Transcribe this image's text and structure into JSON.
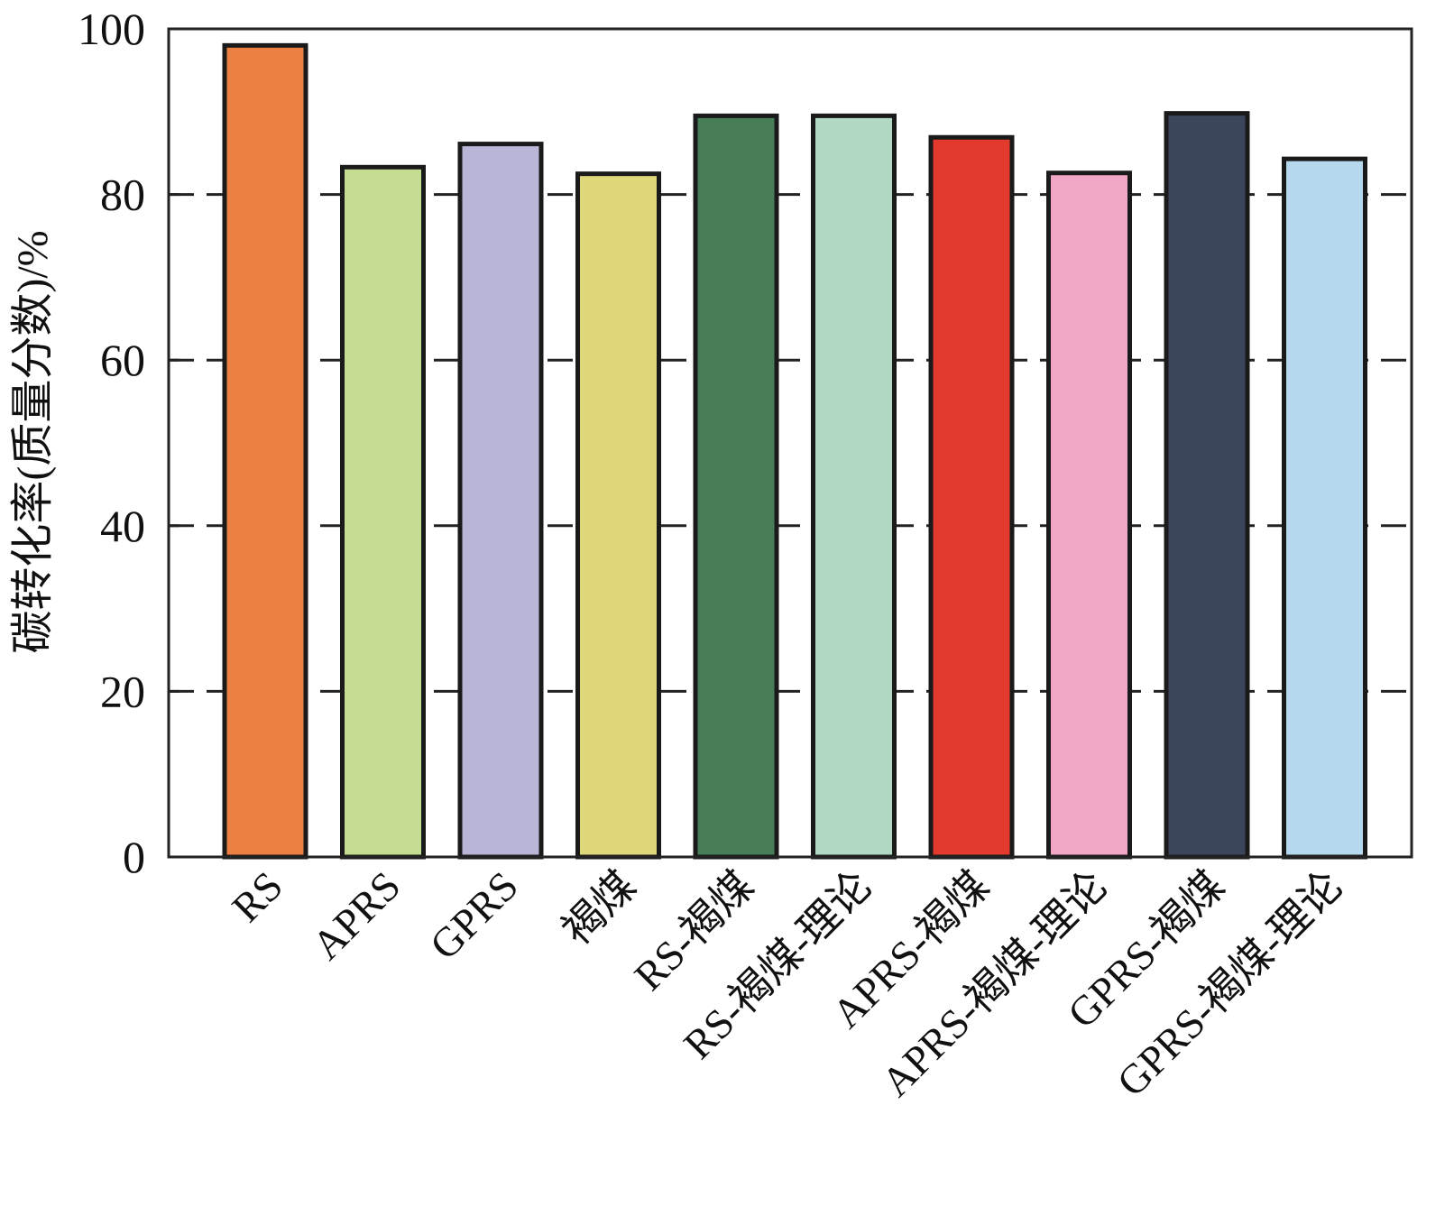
{
  "chart_data": {
    "type": "bar",
    "title": "",
    "xlabel": "",
    "ylabel": "碳转化率(质量分数)/%",
    "ylim": [
      0,
      100
    ],
    "yticks": [
      "0",
      "20",
      "40",
      "60",
      "80",
      "100"
    ],
    "grid": "dashed horizontal at y ticks",
    "categories": [
      "RS",
      "APRS",
      "GPRS",
      "褐煤",
      "RS-褐煤",
      "RS-褐煤-理论",
      "APRS-褐煤",
      "APRS-褐煤-理论",
      "GPRS-褐煤",
      "GPRS-褐煤-理论"
    ],
    "values": [
      98.0,
      83.3,
      86.1,
      82.5,
      89.5,
      89.5,
      86.9,
      82.6,
      89.8,
      84.3
    ],
    "colors": [
      "#ec8043",
      "#c5dc93",
      "#b8b5d7",
      "#dfd77a",
      "#477e57",
      "#b0d8c2",
      "#e33a2d",
      "#f1a6c5",
      "#3b465d",
      "#b5d8ef"
    ]
  }
}
